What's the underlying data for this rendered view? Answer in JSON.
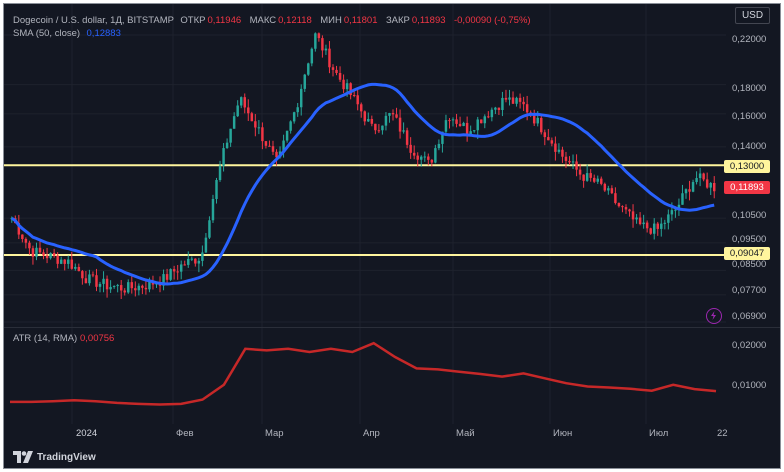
{
  "header": {
    "symbol": "Dogecoin / U.S. dollar, 1Д, BITSTAMP",
    "open_label": "ОТКР",
    "open_value": "0,11946",
    "high_label": "МАКС",
    "high_value": "0,12118",
    "low_label": "МИН",
    "low_value": "0,11801",
    "close_label": "ЗАКР",
    "close_value": "0,11893",
    "change": "-0,00090 (-0,75%)",
    "sma_label": "SMA (50, close)",
    "sma_value": "0,12883"
  },
  "atr": {
    "label": "ATR (14, RMA)",
    "value": "0,00756"
  },
  "currency": "USD",
  "brand": "TradingView",
  "colors": {
    "background": "#131722",
    "bull": "#26a69a",
    "bear": "#f23645",
    "sma": "#2962ff",
    "atr": "#c62828",
    "level": "#fff59d"
  },
  "price_axis": [
    "0,22000",
    "0,18000",
    "0,16000",
    "0,14000",
    "0,10500",
    "0,09500",
    "0,08500",
    "0,07700",
    "0,06900"
  ],
  "atr_axis": [
    "0,02000",
    "0,01000"
  ],
  "time_axis": [
    "2024",
    "Фев",
    "Мар",
    "Апр",
    "Май",
    "Июн",
    "Июл",
    "22"
  ],
  "levels": [
    {
      "price": 0.13,
      "label": "0,13000"
    },
    {
      "price": 0.09047,
      "label": "0,09047"
    }
  ],
  "last_price_label": "0,11893",
  "chart_data": [
    {
      "type": "candlestick",
      "title": "Dogecoin / U.S. dollar, 1Д, BITSTAMP",
      "y_scale": "log",
      "ylim": [
        0.069,
        0.23
      ],
      "x": [
        "2024-01",
        "2024-02",
        "2024-03",
        "2024-04",
        "2024-05",
        "2024-06",
        "2024-07",
        "2024-07-22"
      ],
      "close_path": [
        0.105,
        0.092,
        0.09,
        0.088,
        0.082,
        0.08,
        0.079,
        0.08,
        0.082,
        0.087,
        0.09,
        0.13,
        0.17,
        0.15,
        0.13,
        0.165,
        0.22,
        0.19,
        0.17,
        0.15,
        0.16,
        0.14,
        0.13,
        0.16,
        0.15,
        0.16,
        0.17,
        0.165,
        0.15,
        0.135,
        0.125,
        0.12,
        0.11,
        0.102,
        0.1,
        0.109,
        0.124,
        0.119
      ],
      "series": [
        {
          "name": "SMA (50, close)",
          "last_value": 0.12883
        }
      ]
    },
    {
      "type": "line",
      "title": "ATR (14, RMA)",
      "ylim": [
        0,
        0.025
      ],
      "values": [
        0.0043,
        0.0043,
        0.0045,
        0.0048,
        0.0045,
        0.004,
        0.0037,
        0.0035,
        0.0037,
        0.005,
        0.0095,
        0.0205,
        0.02,
        0.0205,
        0.0195,
        0.0205,
        0.0195,
        0.0222,
        0.018,
        0.0145,
        0.0142,
        0.0135,
        0.0128,
        0.012,
        0.013,
        0.0115,
        0.01,
        0.009,
        0.0087,
        0.0083,
        0.0077,
        0.0095,
        0.0082,
        0.0076
      ]
    }
  ]
}
